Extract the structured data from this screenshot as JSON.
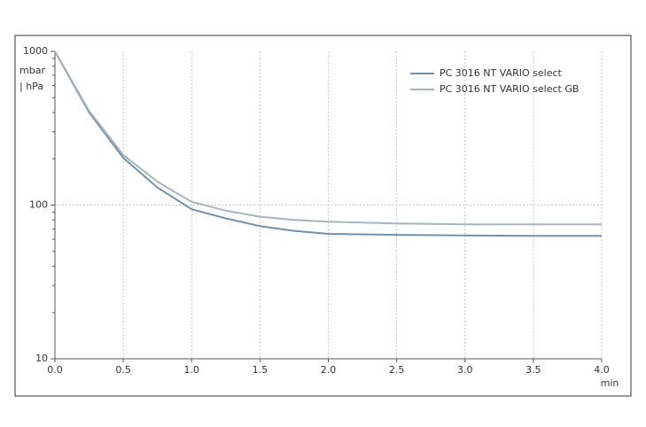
{
  "chart_data": {
    "type": "line",
    "y_label": [
      "mbar",
      "| hPa"
    ],
    "x_label": "min",
    "x": [
      0,
      0.25,
      0.5,
      0.75,
      1.0,
      1.25,
      1.5,
      1.75,
      2.0,
      2.5,
      3.0,
      3.5,
      4.0
    ],
    "series": [
      {
        "name": "PC 3016 NT VARIO select",
        "color": "#7191ab",
        "values": [
          1000,
          400,
          203,
          130,
          94,
          82,
          73,
          68,
          65,
          64,
          63.5,
          63,
          63
        ]
      },
      {
        "name": "PC 3016 NT VARIO select GB",
        "color": "#a9b3ba",
        "values": [
          1000,
          410,
          212,
          142,
          105,
          92,
          84,
          80,
          78,
          76,
          75,
          75,
          75
        ]
      }
    ],
    "xlim": [
      0,
      4.0
    ],
    "xticks": [
      {
        "value": 0,
        "label": "0.0"
      },
      {
        "value": 0.5,
        "label": "0.5"
      },
      {
        "value": 1,
        "label": "1.0"
      },
      {
        "value": 1.5,
        "label": "1.5"
      },
      {
        "value": 2,
        "label": "2.0"
      },
      {
        "value": 2.5,
        "label": "2.5"
      },
      {
        "value": 3,
        "label": "3.0"
      },
      {
        "value": 3.5,
        "label": "3.5"
      },
      {
        "value": 4,
        "label": "4.0"
      }
    ],
    "ylim": [
      10,
      1000
    ],
    "yticks": [
      10,
      100,
      1000
    ],
    "ylog": true,
    "grid": true,
    "legend": "top-right"
  }
}
